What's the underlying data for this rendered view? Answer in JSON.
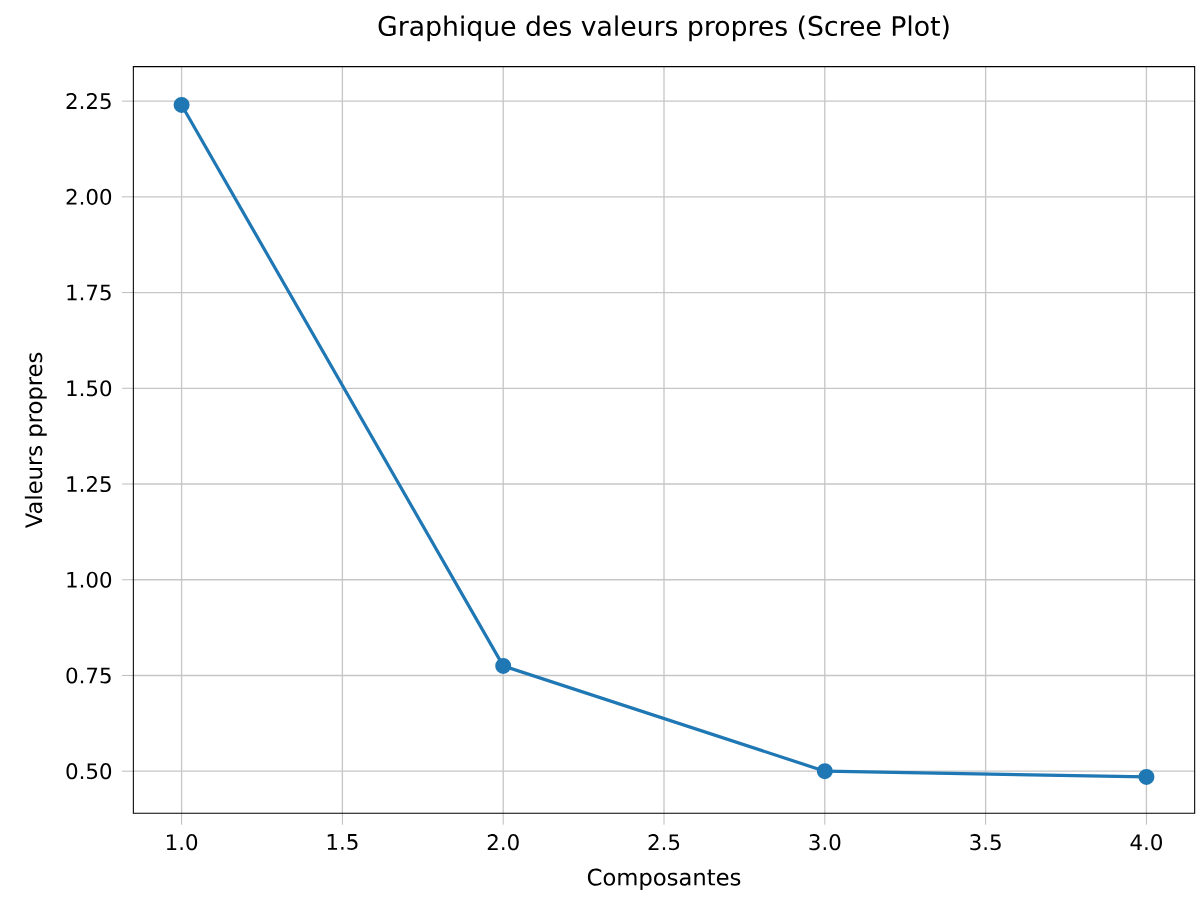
{
  "chart_data": {
    "type": "line",
    "title": "Graphique des valeurs propres (Scree Plot)",
    "xlabel": "Composantes",
    "ylabel": "Valeurs propres",
    "x": [
      1,
      2,
      3,
      4
    ],
    "series": [
      {
        "color": "#1f77b4",
        "values": [
          2.24,
          0.775,
          0.5,
          0.485
        ]
      }
    ],
    "xlim": [
      0.85,
      4.15
    ],
    "ylim": [
      0.39,
      2.34
    ],
    "xticks": [
      {
        "value": 1.0,
        "label": "1.0"
      },
      {
        "value": 1.5,
        "label": "1.5"
      },
      {
        "value": 2.0,
        "label": "2.0"
      },
      {
        "value": 2.5,
        "label": "2.5"
      },
      {
        "value": 3.0,
        "label": "3.0"
      },
      {
        "value": 3.5,
        "label": "3.5"
      },
      {
        "value": 4.0,
        "label": "4.0"
      }
    ],
    "yticks": [
      {
        "value": 0.5,
        "label": "0.50"
      },
      {
        "value": 0.75,
        "label": "0.75"
      },
      {
        "value": 1.0,
        "label": "1.00"
      },
      {
        "value": 1.25,
        "label": "1.25"
      },
      {
        "value": 1.5,
        "label": "1.50"
      },
      {
        "value": 1.75,
        "label": "1.75"
      },
      {
        "value": 2.0,
        "label": "2.00"
      },
      {
        "value": 2.25,
        "label": "2.25"
      }
    ],
    "grid": true,
    "marker": "circle",
    "line_style": "solid"
  }
}
